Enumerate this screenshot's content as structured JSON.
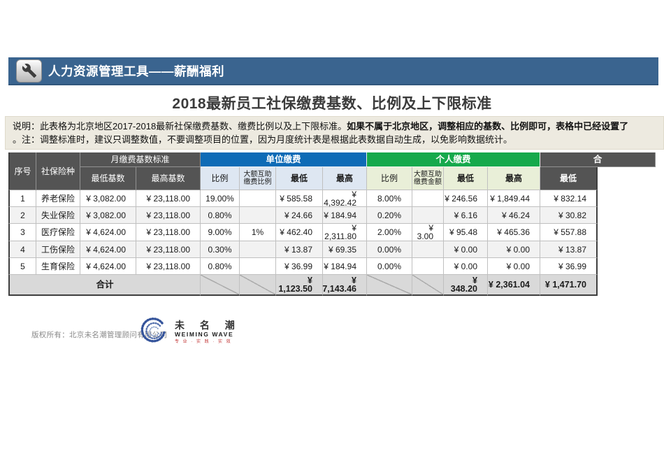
{
  "app_header": {
    "title": "人力资源管理工具——薪酬福利",
    "icon": "wrench-icon"
  },
  "page_title": "2018最新员工社保缴费基数、比例及上下限标准",
  "notice": {
    "line1_normal": "说明：此表格为北京地区2017-2018最新社保缴费基数、缴费比例以及上下限标准。",
    "line1_bold": "如果不属于北京地区，调整相应的基数、比例即可，表格中已经设置了",
    "line2": "。注：调整标准时，建议只调整数值，不要调整项目的位置，因为月度统计表是根据此表数据自动生成，以免影响数据统计。"
  },
  "table": {
    "group_headers": {
      "seq": "序号",
      "insurance_type": "社保险种",
      "monthly_base": "月缴费基数标准",
      "employer": "单位缴费",
      "personal": "个人缴费",
      "total": "合"
    },
    "sub_headers": {
      "min_base": "最低基数",
      "max_base": "最高基数",
      "er_ratio": "比例",
      "er_mutual": "大额互助\n缴费比例",
      "er_min": "最低",
      "er_max": "最高",
      "ee_ratio": "比例",
      "ee_mutual": "大额互助\n缴费金额",
      "ee_min": "最低",
      "ee_max": "最高",
      "sum_min": "最低"
    },
    "row_keys": [
      "no",
      "type",
      "min_base",
      "max_base",
      "er_ratio",
      "er_mutual",
      "er_min",
      "er_max",
      "ee_ratio",
      "ee_mutual",
      "ee_min",
      "ee_max",
      "sum_min"
    ],
    "rows": [
      {
        "no": "1",
        "type": "养老保险",
        "min_base": "¥ 3,082.00",
        "max_base": "¥ 23,118.00",
        "er_ratio": "19.00%",
        "er_mutual": "",
        "er_min": "¥ 585.58",
        "er_max": "¥ 4,392.42",
        "ee_ratio": "8.00%",
        "ee_mutual": "",
        "ee_min": "¥ 246.56",
        "ee_max": "¥ 1,849.44",
        "sum_min": "¥ 832.14"
      },
      {
        "no": "2",
        "type": "失业保险",
        "min_base": "¥ 3,082.00",
        "max_base": "¥ 23,118.00",
        "er_ratio": "0.80%",
        "er_mutual": "",
        "er_min": "¥ 24.66",
        "er_max": "¥ 184.94",
        "ee_ratio": "0.20%",
        "ee_mutual": "",
        "ee_min": "¥ 6.16",
        "ee_max": "¥ 46.24",
        "sum_min": "¥ 30.82"
      },
      {
        "no": "3",
        "type": "医疗保险",
        "min_base": "¥ 4,624.00",
        "max_base": "¥ 23,118.00",
        "er_ratio": "9.00%",
        "er_mutual": "1%",
        "er_min": "¥ 462.40",
        "er_max": "¥ 2,311.80",
        "ee_ratio": "2.00%",
        "ee_mutual": "¥ 3.00",
        "ee_min": "¥ 95.48",
        "ee_max": "¥ 465.36",
        "sum_min": "¥ 557.88"
      },
      {
        "no": "4",
        "type": "工伤保险",
        "min_base": "¥ 4,624.00",
        "max_base": "¥ 23,118.00",
        "er_ratio": "0.30%",
        "er_mutual": "",
        "er_min": "¥ 13.87",
        "er_max": "¥ 69.35",
        "ee_ratio": "0.00%",
        "ee_mutual": "",
        "ee_min": "¥ 0.00",
        "ee_max": "¥ 0.00",
        "sum_min": "¥ 13.87"
      },
      {
        "no": "5",
        "type": "生育保险",
        "min_base": "¥ 4,624.00",
        "max_base": "¥ 23,118.00",
        "er_ratio": "0.80%",
        "er_mutual": "",
        "er_min": "¥ 36.99",
        "er_max": "¥ 184.94",
        "ee_ratio": "0.00%",
        "ee_mutual": "",
        "ee_min": "¥ 0.00",
        "ee_max": "¥ 0.00",
        "sum_min": "¥ 36.99"
      }
    ],
    "total_row": {
      "label": "合计",
      "er_min": "¥ 1,123.50",
      "er_max": "¥ 7,143.46",
      "ee_min": "¥ 348.20",
      "ee_max": "¥ 2,361.04",
      "sum_min": "¥ 1,471.70"
    }
  },
  "footer": {
    "copyright": "版权所有：北京未名潮管理顾问有限公司",
    "logo_cn": "未 名 潮",
    "logo_en": "WEIMING WAVE",
    "logo_slogan": "专 业 · 实 践 · 实 效"
  },
  "colors": {
    "app_bar_blue": "#3A648F",
    "header_dark_gray": "#545454",
    "employer_blue": "#0E6BB6",
    "employer_pale_blue": "#DEE7F2",
    "personal_green": "#16A94C",
    "personal_pale_green": "#E9EFD8",
    "notice_beige": "#EDEAE0",
    "total_row_gray": "#D9D9D9",
    "stripe_gray": "#F2F2F2"
  }
}
